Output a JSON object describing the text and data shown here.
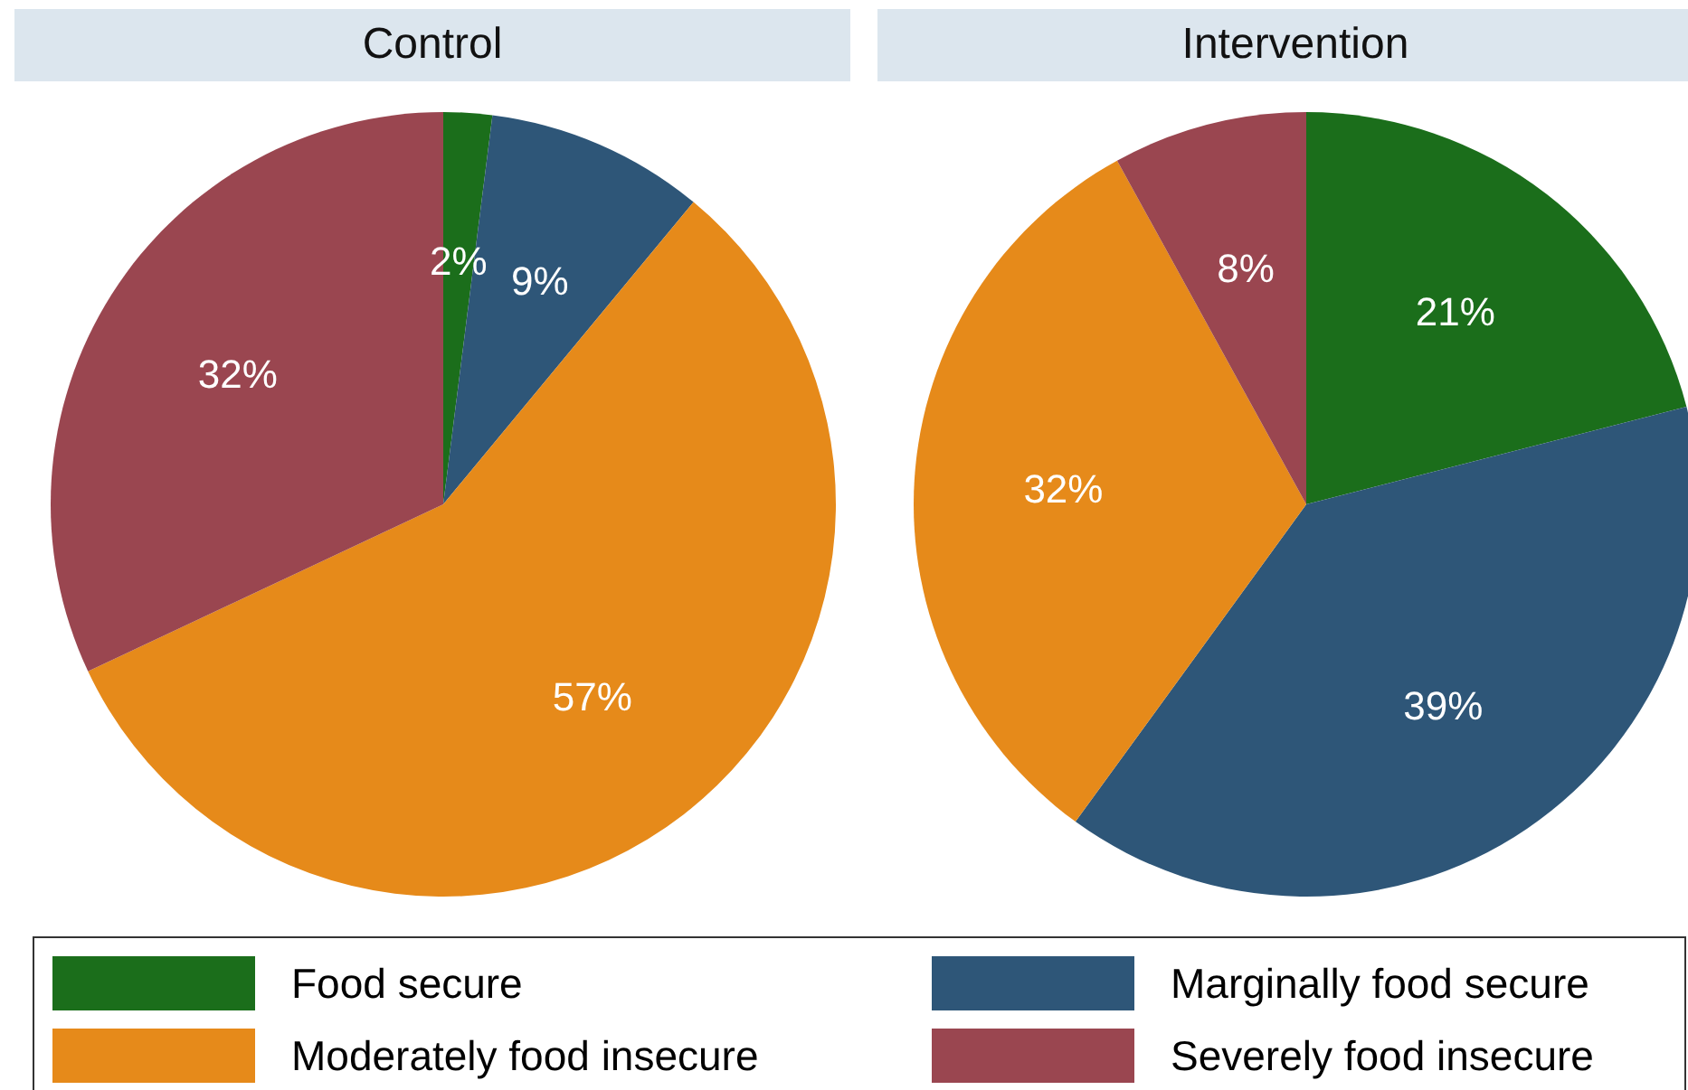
{
  "chart_data": [
    {
      "type": "pie",
      "title": "Control",
      "categories": [
        "Food secure",
        "Marginally food secure",
        "Moderately food insecure",
        "Severely food insecure"
      ],
      "values": [
        2,
        9,
        57,
        32
      ],
      "value_labels": [
        "2%",
        "9%",
        "57%",
        "32%"
      ],
      "colors": [
        "#1b6e1b",
        "#2e5678",
        "#e68a1a",
        "#9a4650"
      ],
      "legend": "bottom"
    },
    {
      "type": "pie",
      "title": "Intervention",
      "values": [
        21,
        39,
        32,
        8
      ],
      "value_labels": [
        "21%",
        "39%",
        "32%",
        "8%"
      ],
      "colors": [
        "#1b6e1b",
        "#2e5678",
        "#e68a1a",
        "#9a4650"
      ]
    }
  ]
}
